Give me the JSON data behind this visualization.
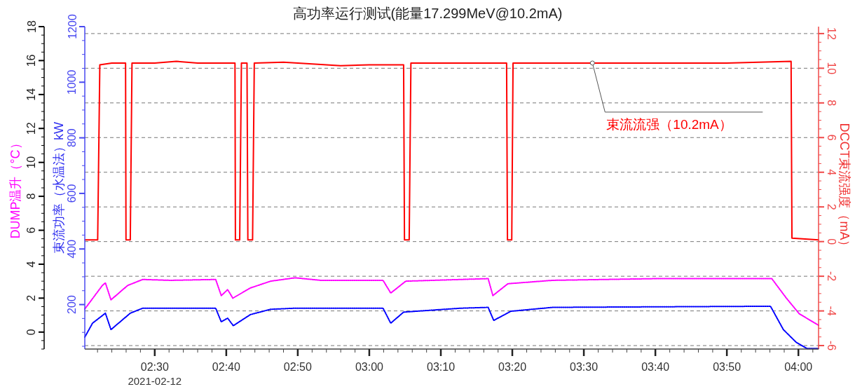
{
  "chart_data": {
    "type": "line",
    "title": "高功率运行测试(能量17.299MeV@10.2mA)",
    "ylabel": "DCCT束流强度（mA）",
    "y2label": "束流功率（水温法）kW",
    "y3label": "DUMP温升（°C）",
    "xlim": [
      2.337,
      4.047
    ],
    "xticks": [
      {
        "value": 2.5,
        "label": "02:30"
      },
      {
        "value": 2.6667,
        "label": "02:40"
      },
      {
        "value": 2.8333,
        "label": "02:50"
      },
      {
        "value": 3.0,
        "label": "03:00"
      },
      {
        "value": 3.1667,
        "label": "03:10"
      },
      {
        "value": 3.3333,
        "label": "03:20"
      },
      {
        "value": 3.5,
        "label": "03:30"
      },
      {
        "value": 3.6667,
        "label": "03:40"
      },
      {
        "value": 3.8333,
        "label": "03:50"
      },
      {
        "value": 4.0,
        "label": "04:00"
      }
    ],
    "ylim": [
      -6.2,
      12.4
    ],
    "yticks": [
      -6,
      -4,
      -2,
      0,
      2,
      4,
      6,
      8,
      10,
      12
    ],
    "y2lim": [
      40,
      1200
    ],
    "y2ticks": [
      200,
      400,
      600,
      800,
      1000,
      1200
    ],
    "y3lim": [
      -1,
      18
    ],
    "y3ticks": [
      0,
      2,
      4,
      6,
      8,
      10,
      12,
      14,
      16,
      18
    ],
    "grid": "y",
    "marker": "none",
    "series": [
      {
        "color": "#ff0000",
        "line_style": "solid",
        "x": [
          2.338,
          2.367,
          2.372,
          2.4,
          2.432,
          2.433,
          2.443,
          2.447,
          2.5,
          2.55,
          2.6,
          2.687,
          2.688,
          2.698,
          2.702,
          2.715,
          2.717,
          2.728,
          2.732,
          2.8,
          2.867,
          2.933,
          3.0,
          3.08,
          3.082,
          3.093,
          3.097,
          3.167,
          3.25,
          3.32,
          3.322,
          3.332,
          3.335,
          3.417,
          3.5,
          3.667,
          3.833,
          3.983,
          3.985,
          4.047
        ],
        "values": [
          0.1,
          0.1,
          10.2,
          10.3,
          10.3,
          0.1,
          0.1,
          10.3,
          10.3,
          10.4,
          10.3,
          10.3,
          0.1,
          0.1,
          10.3,
          10.3,
          0.1,
          0.1,
          10.3,
          10.35,
          10.25,
          10.15,
          10.2,
          10.2,
          0.1,
          0.1,
          10.3,
          10.3,
          10.3,
          10.3,
          0.1,
          0.1,
          10.3,
          10.3,
          10.3,
          10.3,
          10.3,
          10.4,
          0.2,
          0.1
        ]
      },
      {
        "color": "#0000ff",
        "axis": "y2",
        "line_style": "dotted",
        "x": [
          2.337,
          2.355,
          2.385,
          2.398,
          2.443,
          2.472,
          2.642,
          2.655,
          2.67,
          2.683,
          2.723,
          2.77,
          2.827,
          3.032,
          3.05,
          3.08,
          3.213,
          3.277,
          3.29,
          3.33,
          3.427,
          3.935,
          3.965,
          3.995,
          4.02,
          4.047
        ],
        "values": [
          83,
          133,
          169,
          110,
          169,
          187,
          187,
          138,
          151,
          124,
          164,
          183,
          187,
          187,
          133,
          173,
          187,
          190,
          143,
          176,
          190,
          194,
          110,
          64,
          42,
          42
        ]
      },
      {
        "color": "#ff00ff",
        "axis": "y3",
        "line_style": "dotted",
        "x": [
          2.337,
          2.378,
          2.385,
          2.398,
          2.437,
          2.472,
          2.537,
          2.642,
          2.655,
          2.67,
          2.682,
          2.723,
          2.77,
          2.827,
          2.887,
          3.032,
          3.05,
          3.085,
          3.213,
          3.277,
          3.288,
          3.323,
          3.427,
          3.668,
          3.938,
          3.972,
          4.002,
          4.047
        ],
        "values": [
          1.36,
          2.75,
          2.9,
          1.9,
          2.75,
          3.1,
          3.05,
          3.1,
          2.15,
          2.5,
          2.0,
          2.6,
          3.0,
          3.2,
          3.05,
          3.05,
          2.3,
          3.0,
          3.1,
          3.15,
          2.15,
          2.85,
          3.05,
          3.15,
          3.15,
          2.0,
          1.08,
          0.4
        ]
      }
    ],
    "annotations": [
      {
        "text": "束流流强（10.2mA）",
        "x": 3.52,
        "y": 10.3
      },
      "2021-02-12"
    ]
  }
}
